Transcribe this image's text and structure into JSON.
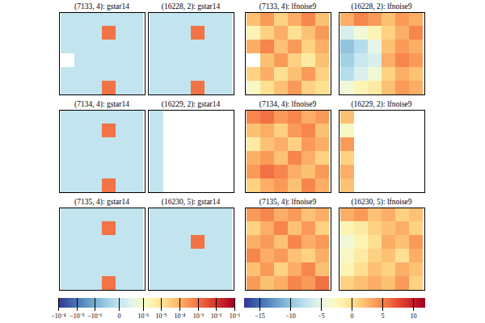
{
  "chart_data": {
    "type": "heatmap",
    "tick_labels": false,
    "color": "RdYlBu",
    "colorbars": [
      {
        "range": [
          -0.0001,
          0.1
        ],
        "log": true,
        "ticks": [
          {
            "value": -0.0001,
            "label": "−10⁻⁴"
          },
          {
            "value": -1e-05,
            "label": "−10⁻⁵"
          },
          {
            "value": -1e-06,
            "label": "−10⁻⁶"
          },
          0,
          {
            "value": 1e-06,
            "label": "10⁻⁶"
          },
          {
            "value": 1e-05,
            "label": "10⁻⁵"
          },
          {
            "value": 0.0001,
            "label": "10⁻⁴"
          },
          {
            "value": 0.001,
            "label": "10⁻³"
          },
          {
            "value": 0.01,
            "label": "10⁻²"
          },
          {
            "value": 0.1,
            "label": "10⁻¹"
          }
        ],
        "panels": [
          {
            "title": "(7133, 4): gstar14",
            "cells": [
              [
                0,
                0,
                0,
                0,
                0,
                0
              ],
              [
                0,
                0,
                0,
                0.001,
                0,
                0
              ],
              [
                0,
                0,
                0,
                0,
                0,
                0
              ],
              [
                null,
                0,
                0,
                0,
                0,
                0
              ],
              [
                0,
                0,
                0,
                0,
                0,
                0
              ],
              [
                0,
                0,
                0,
                0.001,
                0,
                0
              ]
            ]
          },
          {
            "title": "(16228, 2): gstar14",
            "cells": [
              [
                0,
                0,
                0,
                0,
                0,
                0
              ],
              [
                0,
                0,
                0,
                0.001,
                0,
                0
              ],
              [
                0,
                0,
                0,
                0,
                0,
                0
              ],
              [
                0,
                0,
                0,
                0,
                0,
                0
              ],
              [
                0,
                0,
                0,
                0,
                0,
                0
              ],
              [
                0,
                0,
                0,
                0.001,
                0,
                0
              ]
            ]
          },
          {
            "title": "(7134, 4): gstar14",
            "cells": [
              [
                0,
                0,
                0,
                0,
                0,
                0
              ],
              [
                0,
                0,
                0,
                0.001,
                0,
                0
              ],
              [
                0,
                0,
                0,
                0,
                0,
                0
              ],
              [
                0,
                0,
                0,
                0,
                0,
                0
              ],
              [
                0,
                0,
                0,
                0,
                0,
                0
              ],
              [
                0,
                0,
                0,
                0.001,
                0,
                0
              ]
            ]
          },
          {
            "title": "(16229, 2): gstar14",
            "cells": [
              [
                0,
                null,
                null,
                null,
                null,
                null
              ],
              [
                0,
                null,
                null,
                null,
                null,
                null
              ],
              [
                0,
                null,
                null,
                null,
                null,
                null
              ],
              [
                0,
                null,
                null,
                null,
                null,
                null
              ],
              [
                0,
                null,
                null,
                null,
                null,
                null
              ],
              [
                0,
                null,
                null,
                null,
                null,
                null
              ]
            ]
          },
          {
            "title": "(7135, 4): gstar14",
            "cells": [
              [
                0,
                0,
                0,
                0,
                0,
                0
              ],
              [
                0,
                0,
                0,
                0.001,
                0,
                0
              ],
              [
                0,
                0,
                0,
                0,
                0,
                0
              ],
              [
                0,
                0,
                0,
                0,
                0,
                0
              ],
              [
                0,
                0,
                0,
                0,
                0,
                0
              ],
              [
                0,
                0,
                0,
                0.001,
                0,
                0
              ]
            ]
          },
          {
            "title": "(16230, 5): gstar14",
            "cells": [
              [
                0,
                0,
                0,
                0,
                0,
                0
              ],
              [
                0,
                0,
                0,
                0,
                0,
                0
              ],
              [
                0,
                0,
                0,
                0.001,
                0,
                0
              ],
              [
                0,
                0,
                0,
                0,
                0,
                0
              ],
              [
                0,
                0,
                0,
                0,
                0,
                0
              ],
              [
                0,
                0,
                0,
                0,
                0,
                0
              ]
            ]
          }
        ]
      },
      {
        "range": [
          -17.5,
          12
        ],
        "ticks": [
          {
            "value": -15,
            "label": "−15"
          },
          {
            "value": -10,
            "label": "−10"
          },
          {
            "value": -5,
            "label": "−5"
          },
          0,
          5,
          10
        ],
        "panels": [
          {
            "title": "(7133, 4): lfnoise9",
            "cells": [
              [
                2,
                4,
                1,
                3,
                5,
                2
              ],
              [
                -2,
                1,
                3,
                0,
                2,
                4
              ],
              [
                3,
                5,
                2,
                4,
                1,
                3
              ],
              [
                null,
                2,
                4,
                1,
                -1,
                2
              ],
              [
                1,
                3,
                0,
                2,
                4,
                1
              ],
              [
                -3,
                0,
                2,
                4,
                1,
                0
              ]
            ]
          },
          {
            "title": "(16228, 2): lfnoise9",
            "cells": [
              [
                3,
                5,
                4,
                2,
                4,
                3
              ],
              [
                -6,
                -4,
                -2,
                1,
                3,
                5
              ],
              [
                -10,
                -8,
                -5,
                2,
                4,
                3
              ],
              [
                -9,
                -7,
                -6,
                3,
                5,
                4
              ],
              [
                -8,
                -6,
                -4,
                1,
                3,
                2
              ],
              [
                -4,
                -2,
                -1,
                2,
                4,
                3
              ]
            ]
          },
          {
            "title": "(7134, 4): lfnoise9",
            "cells": [
              [
                5,
                6,
                4,
                5,
                3,
                4
              ],
              [
                2,
                3,
                1,
                4,
                5,
                2
              ],
              [
                -1,
                2,
                3,
                1,
                4,
                3
              ],
              [
                3,
                4,
                2,
                5,
                3,
                1
              ],
              [
                4,
                6,
                5,
                3,
                2,
                4
              ],
              [
                1,
                3,
                4,
                2,
                5,
                3
              ]
            ]
          },
          {
            "title": "(16229, 2): lfnoise9",
            "cells": [
              [
                2,
                null,
                null,
                null,
                null,
                null
              ],
              [
                -3,
                null,
                null,
                null,
                null,
                null
              ],
              [
                4,
                null,
                null,
                null,
                null,
                null
              ],
              [
                1,
                null,
                null,
                null,
                null,
                null
              ],
              [
                3,
                null,
                null,
                null,
                null,
                null
              ],
              [
                2,
                null,
                null,
                null,
                null,
                null
              ]
            ]
          },
          {
            "title": "(7135, 4): lfnoise9",
            "cells": [
              [
                4,
                5,
                3,
                4,
                2,
                3
              ],
              [
                1,
                3,
                5,
                2,
                4,
                1
              ],
              [
                3,
                4,
                2,
                5,
                3,
                4
              ],
              [
                5,
                3,
                4,
                2,
                1,
                3
              ],
              [
                2,
                4,
                1,
                3,
                5,
                2
              ],
              [
                4,
                2,
                3,
                5,
                4,
                6
              ]
            ]
          },
          {
            "title": "(16230, 5): lfnoise9",
            "cells": [
              [
                3,
                4,
                2,
                3,
                1,
                2
              ],
              [
                -2,
                -1,
                1,
                2,
                3,
                1
              ],
              [
                -4,
                -2,
                0,
                3,
                2,
                4
              ],
              [
                -3,
                -1,
                1,
                2,
                0,
                3
              ],
              [
                -2,
                0,
                2,
                1,
                3,
                2
              ],
              [
                1,
                2,
                3,
                2,
                4,
                1
              ]
            ]
          }
        ]
      }
    ]
  }
}
